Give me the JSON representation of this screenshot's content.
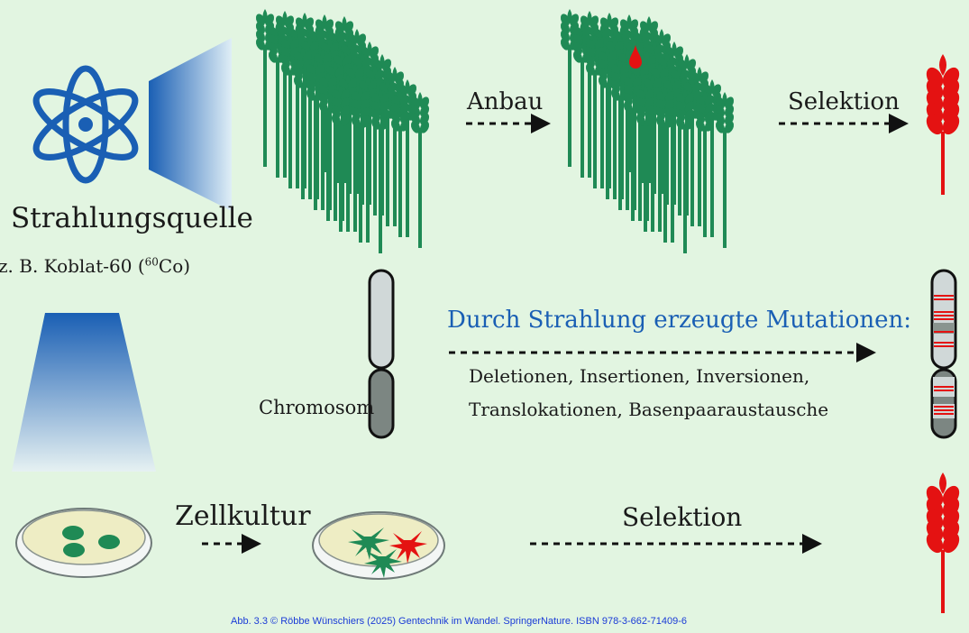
{
  "labels": {
    "source_title": "Strahlungsquelle",
    "source_example_prefix": "z. B. Koblat-60 (",
    "source_example_sup": "60",
    "source_example_suffix": "Co)",
    "arrow_cultivation": "Anbau",
    "arrow_selection_top": "Selektion",
    "chromosome": "Chromosom",
    "mutation_heading": "Durch Strahlung erzeugte Mutationen:",
    "mutation_line1": "Deletionen, Insertionen, Inversionen,",
    "mutation_line2": "Translokationen, Basenpaaraustausche",
    "arrow_cell_culture": "Zellkultur",
    "arrow_selection_bottom": "Selektion"
  },
  "caption": "Abb. 3.3 © Röbbe Wünschiers (2025) Gentechnik im Wandel. SpringerNature. ISBN 978-3-662-71409-6",
  "colors": {
    "background": "#e2f5e1",
    "wheat_green": "#1f8a55",
    "selected_red": "#e41212",
    "atom_blue": "#1a5fb4",
    "mutation_blue": "#1a5fb4",
    "caption_blue": "#1a3bd6"
  },
  "icons": [
    "atom-icon",
    "radiation-beam",
    "wheat-field",
    "petri-dish",
    "chromosome"
  ]
}
